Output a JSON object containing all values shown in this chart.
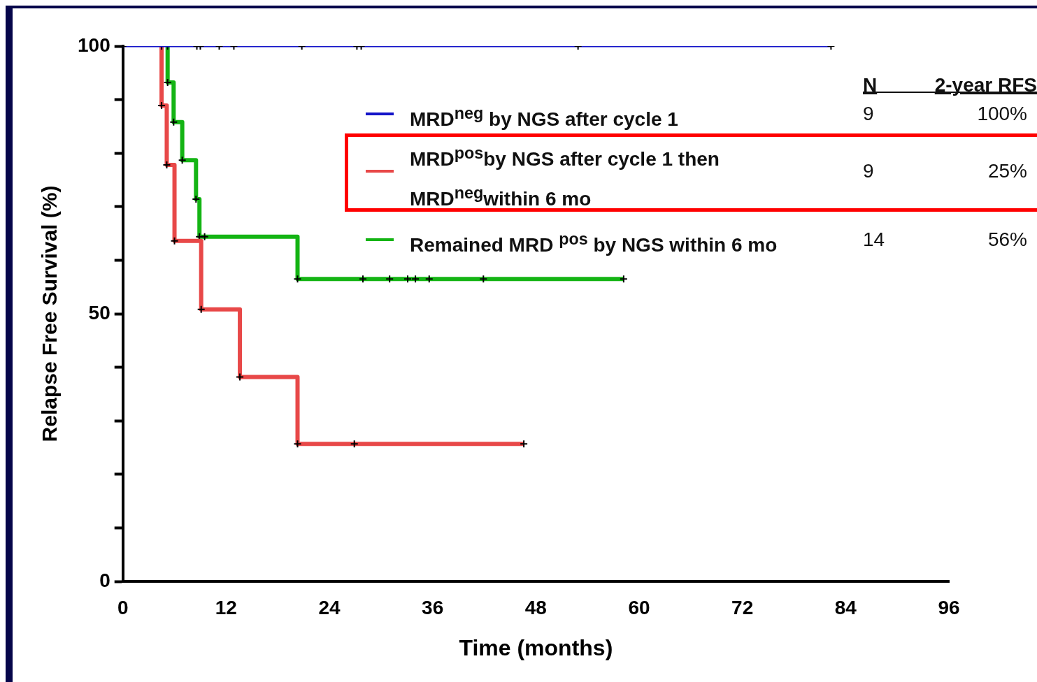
{
  "chart_data": {
    "type": "step",
    "xlabel": "Time (months)",
    "ylabel": "Relapse Free Survival (%)",
    "xlim": [
      0,
      96
    ],
    "xticks": [
      0,
      12,
      24,
      36,
      48,
      60,
      72,
      84,
      96
    ],
    "ylim": [
      0,
      100
    ],
    "yticks": [
      0,
      {
        "value": 10,
        "label": null
      },
      {
        "value": 20,
        "label": null
      },
      {
        "value": 30,
        "label": null
      },
      {
        "value": 40,
        "label": null
      },
      50,
      {
        "value": 60,
        "label": null
      },
      {
        "value": 70,
        "label": null
      },
      {
        "value": 80,
        "label": null
      },
      {
        "value": 90,
        "label": null
      },
      100
    ],
    "grid": false,
    "legend": "top right",
    "marker": "cross",
    "annotations": [
      "N",
      "2-year RFS",
      "9",
      "100%",
      "9",
      "25%",
      "14",
      "56%"
    ],
    "series": [
      {
        "name": "MRD$^{neg}$ by NGS after cycle 1",
        "color": "#1414c8",
        "x": [
          0,
          8.6,
          9.0,
          11.2,
          12.9,
          20.8,
          27.2,
          27.7,
          52.9,
          82.3
        ],
        "values": [
          100,
          100,
          100,
          100,
          100,
          100,
          100,
          100,
          100,
          100
        ]
      },
      {
        "name": "MRD$^{pos}$by NGS after cycle 1 then MRD$^{neg}$within 6 mo",
        "color": "#e84848",
        "x": [
          4.5,
          4.5,
          5.1,
          6.0,
          9.1,
          13.6,
          20.3,
          26.9,
          46.6
        ],
        "values": [
          100,
          88.9,
          77.8,
          63.6,
          50.8,
          38.2,
          25.7,
          25.7,
          25.7
        ]
      },
      {
        "name": "Remained MRD $^{pos}$ by NGS within 6 mo",
        "color": "#14b414",
        "x": [
          5.2,
          5.2,
          5.9,
          6.9,
          8.5,
          8.9,
          9.5,
          20.3,
          27.9,
          31.0,
          33.1,
          34.0,
          35.6,
          41.9,
          58.2
        ],
        "values": [
          100,
          93.2,
          85.8,
          78.7,
          71.4,
          64.4,
          64.4,
          56.5,
          56.5,
          56.5,
          56.5,
          56.5,
          56.5,
          56.5,
          56.5
        ]
      }
    ]
  }
}
